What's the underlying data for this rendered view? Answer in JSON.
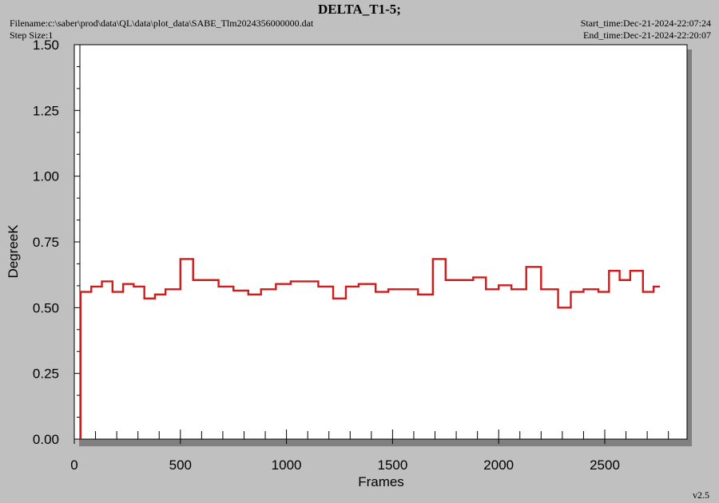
{
  "header": {
    "title": "DELTA_T1-5;",
    "filename": "Filename:c:\\saber\\prod\\data\\QL\\data\\plot_data\\SABE_Tlm2024356000000.dat",
    "step_size": "Step Size:1",
    "start_time": "Start_time:Dec-21-2024-22:07:24",
    "end_time": "End_time:Dec-21-2024-22:20:07",
    "version": "v2.5"
  },
  "colors": {
    "background": "#c0c0c0",
    "plot_area": "#ffffff",
    "line": "#d11a1a",
    "shadow": "#808080"
  },
  "chart_data": {
    "type": "line",
    "step": true,
    "title": "DELTA_T1-5;",
    "xlabel": "Frames",
    "ylabel": "DegreeK",
    "xlim": [
      0,
      2900
    ],
    "ylim": [
      0,
      1.5
    ],
    "xticks": [
      "0",
      "500",
      "1000",
      "1500",
      "2000",
      "2500"
    ],
    "xtick_values": [
      0,
      500,
      1000,
      1500,
      2000,
      2500
    ],
    "yticks": [
      "0.00",
      "0.25",
      "0.50",
      "0.75",
      "1.00",
      "1.25",
      "1.50"
    ],
    "ytick_values": [
      0,
      0.25,
      0.5,
      0.75,
      1.0,
      1.25,
      1.5
    ],
    "grid": false,
    "series": [
      {
        "x": [
          30,
          30,
          80,
          130,
          180,
          230,
          280,
          330,
          380,
          430,
          500,
          560,
          680,
          750,
          820,
          880,
          950,
          1020,
          1150,
          1220,
          1280,
          1340,
          1420,
          1480,
          1560,
          1620,
          1690,
          1750,
          1880,
          1940,
          2000,
          2060,
          2130,
          2200,
          2280,
          2340,
          2400,
          2470,
          2520,
          2570,
          2620,
          2680,
          2730,
          2760
        ],
        "y": [
          0.0,
          0.56,
          0.58,
          0.6,
          0.56,
          0.59,
          0.58,
          0.535,
          0.55,
          0.57,
          0.685,
          0.605,
          0.58,
          0.565,
          0.55,
          0.57,
          0.59,
          0.6,
          0.58,
          0.535,
          0.58,
          0.59,
          0.56,
          0.57,
          0.57,
          0.55,
          0.685,
          0.605,
          0.615,
          0.57,
          0.585,
          0.57,
          0.655,
          0.57,
          0.5,
          0.56,
          0.57,
          0.56,
          0.64,
          0.605,
          0.64,
          0.56,
          0.58,
          0.58
        ]
      }
    ]
  }
}
